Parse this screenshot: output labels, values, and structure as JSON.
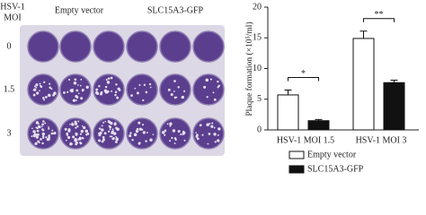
{
  "plate": {
    "corner_label": [
      "HSV-1",
      "MOI"
    ],
    "column_labels": [
      "Empty vector",
      "SLC15A3-GFP"
    ],
    "row_labels": [
      "0",
      "1.5",
      "3"
    ]
  },
  "chart_data": {
    "type": "bar",
    "ylabel": "Plaque formation (×10⁵/ml)",
    "categories": [
      "HSV-1 MOI 1.5",
      "HSV-1 MOI 3"
    ],
    "series": [
      {
        "name": "Empty vector",
        "color": "#ffffff",
        "values": [
          5.7,
          14.9
        ],
        "errors": [
          0.8,
          1.2
        ]
      },
      {
        "name": "SLC15A3-GFP",
        "color": "#111111",
        "values": [
          1.5,
          7.7
        ],
        "errors": [
          0.2,
          0.4
        ]
      }
    ],
    "annotations": [
      "*",
      "**"
    ],
    "ylim": [
      0,
      20
    ],
    "yticks": [
      0,
      5,
      10,
      15,
      20
    ],
    "legend": "bottom"
  }
}
